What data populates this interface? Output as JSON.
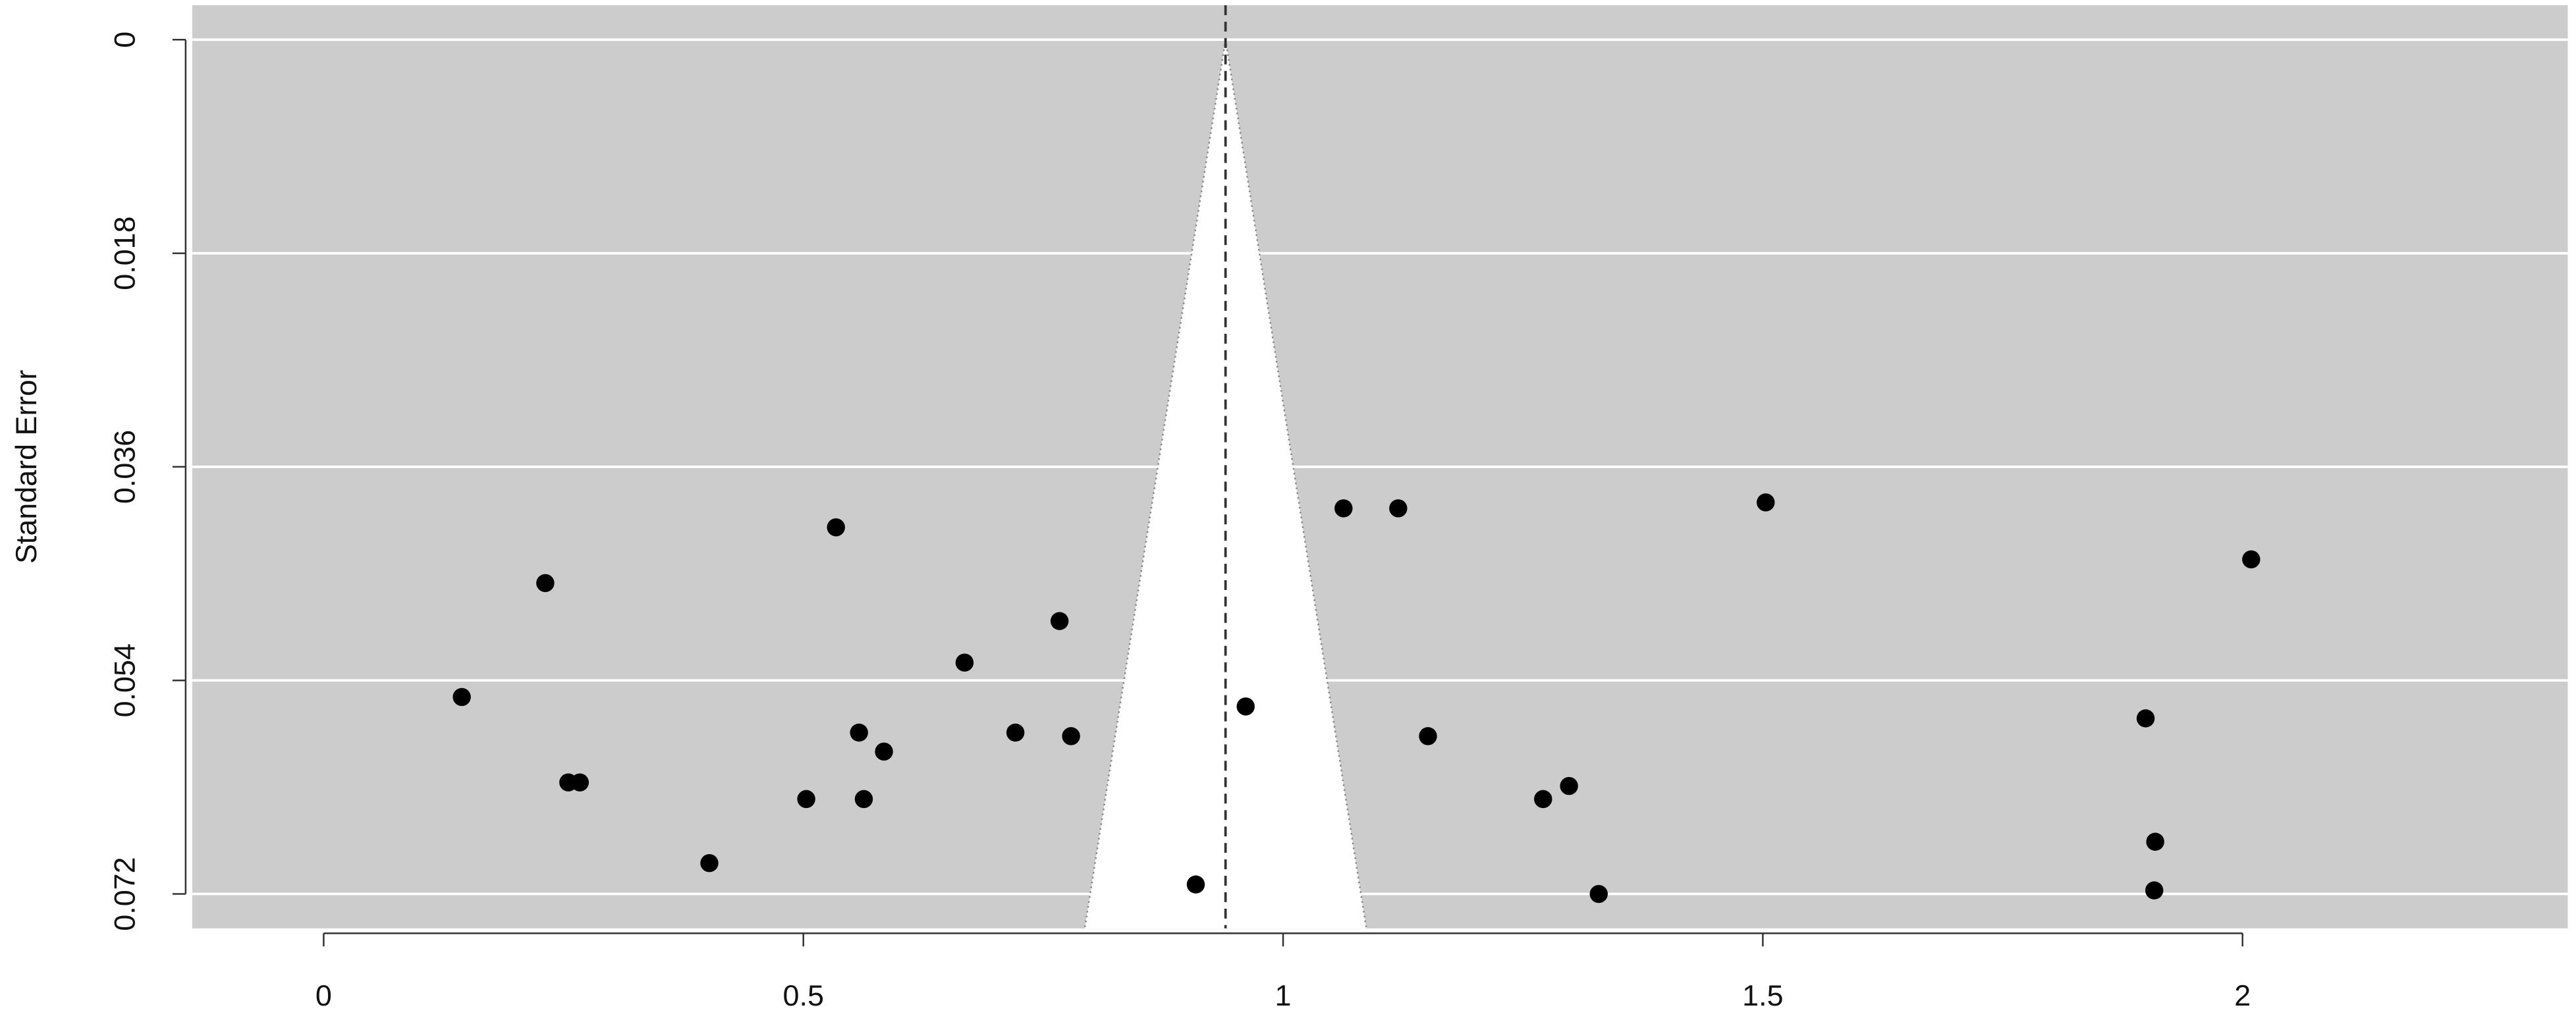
{
  "chart_data": {
    "type": "scatter",
    "y_label": "Standard Error",
    "xlim": [
      -0.137,
      2.339
    ],
    "ylim": [
      -0.0029,
      0.0749
    ],
    "y_inverted": true,
    "xticks": [
      0,
      0.5,
      1,
      1.5,
      2
    ],
    "yticks": [
      0,
      0.018,
      0.036,
      0.054,
      0.072
    ],
    "grid": true,
    "background": "#cccccc",
    "color": "#000000",
    "reference_x": 0.94,
    "funnel_z": 1.96,
    "x": [
      0.144,
      0.231,
      0.255,
      0.267,
      0.402,
      0.503,
      0.534,
      0.558,
      0.563,
      0.584,
      0.668,
      0.721,
      0.767,
      0.779,
      0.909,
      0.961,
      1.063,
      1.12,
      1.151,
      1.271,
      1.298,
      1.329,
      1.503,
      1.899,
      1.909,
      1.908,
      2.009
    ],
    "values": [
      0.0554,
      0.0458,
      0.0626,
      0.0626,
      0.0694,
      0.064,
      0.0411,
      0.0584,
      0.064,
      0.06,
      0.0525,
      0.0584,
      0.049,
      0.0587,
      0.0712,
      0.0562,
      0.0395,
      0.0395,
      0.0587,
      0.064,
      0.0629,
      0.072,
      0.039,
      0.0572,
      0.0676,
      0.0717,
      0.0438
    ]
  }
}
